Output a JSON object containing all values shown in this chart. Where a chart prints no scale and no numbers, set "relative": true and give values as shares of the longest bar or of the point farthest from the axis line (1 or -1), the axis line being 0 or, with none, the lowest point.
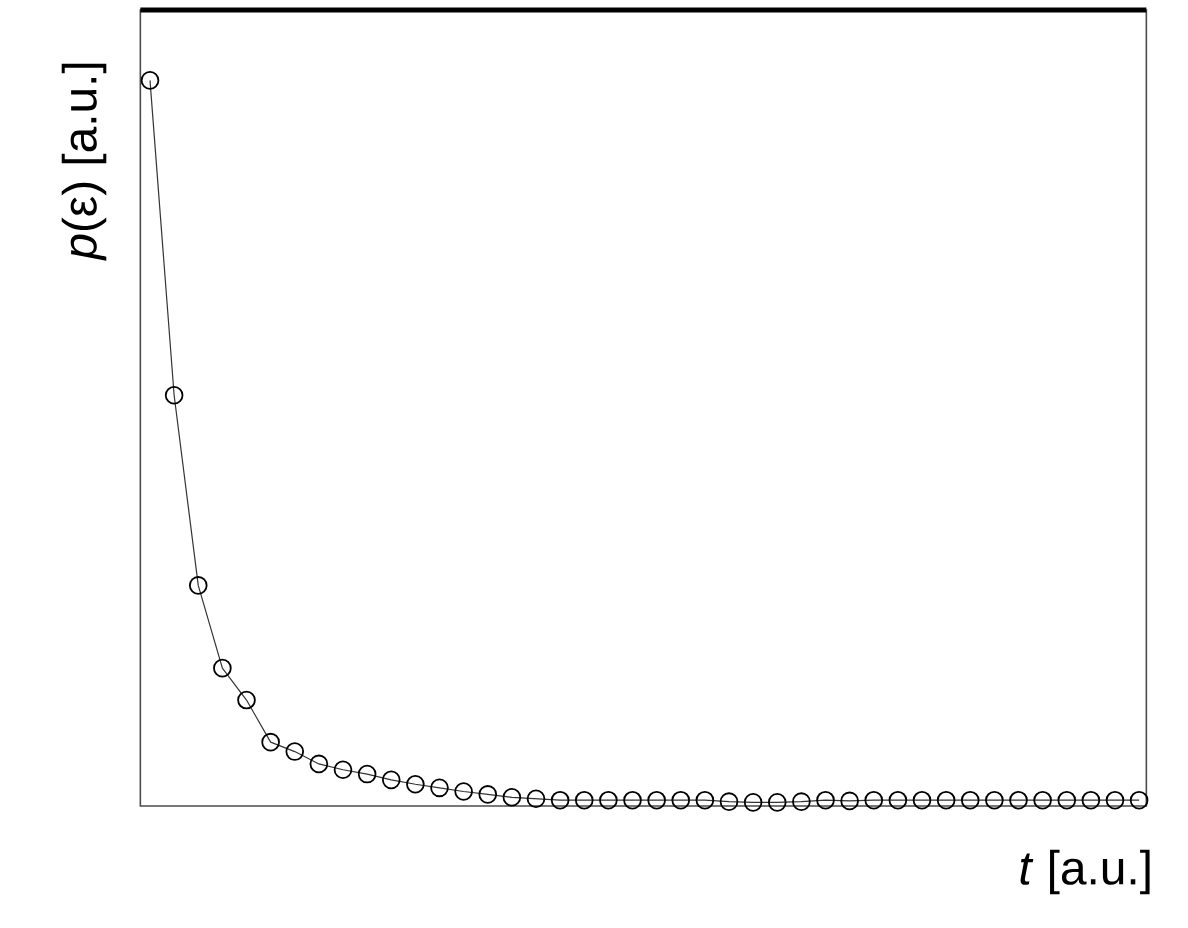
{
  "chart_data": {
    "type": "line",
    "relative": true,
    "marker": "circle",
    "xlabel": "*t* [a.u.]",
    "ylabel": "*p*(ε) [a.u.]",
    "categories": [
      null,
      null,
      null,
      null,
      null,
      null,
      null,
      null,
      null,
      null,
      null,
      null,
      null,
      null,
      null,
      null,
      null,
      null,
      null,
      null,
      null,
      null,
      null,
      null,
      null,
      null,
      null,
      null,
      null,
      null,
      null,
      null,
      null,
      null,
      null,
      null,
      null,
      null,
      null,
      null,
      null,
      null
    ],
    "series": [
      {
        "color": "#333333",
        "values": [
          1,
          0.566,
          0.304,
          0.19,
          0.146,
          0.088,
          0.075,
          0.058,
          0.05,
          0.044,
          0.036,
          0.03,
          0.025,
          0.02,
          0.016,
          0.012,
          0.01,
          0.008,
          0.008,
          0.008,
          0.008,
          0.008,
          0.008,
          0.008,
          0.006,
          0.005,
          0.005,
          0.006,
          0.008,
          0.007,
          0.008,
          0.008,
          0.008,
          0.008,
          0.008,
          0.008,
          0.008,
          0.008,
          0.008,
          0.008,
          0.008,
          0.008
        ]
      }
    ]
  }
}
